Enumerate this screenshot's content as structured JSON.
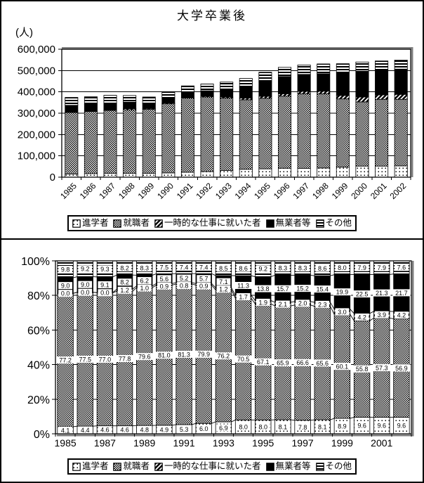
{
  "top_panel": {
    "title": "大学卒業後",
    "unit_label": "(人)"
  },
  "legend": {
    "items": [
      {
        "label": "進学者",
        "pattern": "dots"
      },
      {
        "label": "就職者",
        "pattern": "checker"
      },
      {
        "label": "一時的な仕事に就いた者",
        "pattern": "diagonal"
      },
      {
        "label": "無業者等",
        "pattern": "solid"
      },
      {
        "label": "その他",
        "pattern": "hlines"
      }
    ]
  },
  "chart_data": [
    {
      "type": "bar",
      "stacked": true,
      "title": "大学卒業後",
      "unit": "人",
      "ylim": [
        0,
        600000
      ],
      "y_ticks": [
        "600,000",
        "500,000",
        "400,000",
        "300,000",
        "200,000",
        "100,000",
        "0"
      ],
      "grid": true,
      "categories": [
        1985,
        1986,
        1987,
        1988,
        1989,
        1990,
        1991,
        1992,
        1993,
        1994,
        1995,
        1996,
        1997,
        1998,
        1999,
        2000,
        2001,
        2002
      ],
      "totals_estimated": [
        373000,
        376000,
        383000,
        383000,
        377000,
        400000,
        428000,
        438000,
        446000,
        462000,
        493000,
        513000,
        525000,
        530000,
        532000,
        539000,
        546000,
        548000
      ],
      "series": [
        {
          "name": "進学者",
          "pattern": "dots",
          "values": [
            15000,
            17000,
            18000,
            18000,
            18000,
            20000,
            23000,
            26000,
            31000,
            37000,
            39000,
            42000,
            41000,
            43000,
            47000,
            52000,
            52000,
            53000
          ]
        },
        {
          "name": "就職者",
          "pattern": "checker",
          "values": [
            288000,
            291000,
            295000,
            298000,
            300000,
            324000,
            348000,
            350000,
            340000,
            326000,
            331000,
            338000,
            350000,
            348000,
            320000,
            301000,
            313000,
            312000
          ]
        },
        {
          "name": "一時的な仕事に就いた者",
          "pattern": "diagonal",
          "values": [
            0,
            0,
            0,
            5000,
            4000,
            4000,
            3000,
            4000,
            5000,
            8000,
            9000,
            11000,
            11000,
            12000,
            16000,
            23000,
            21000,
            23000
          ]
        },
        {
          "name": "無業者等",
          "pattern": "solid",
          "values": [
            34000,
            34000,
            35000,
            31000,
            23000,
            22000,
            22000,
            25000,
            32000,
            52000,
            68000,
            81000,
            80000,
            82000,
            106000,
            121000,
            116000,
            119000
          ]
        },
        {
          "name": "その他",
          "pattern": "hlines",
          "values": [
            37000,
            35000,
            36000,
            31000,
            31000,
            30000,
            32000,
            32000,
            38000,
            40000,
            45000,
            43000,
            44000,
            46000,
            43000,
            43000,
            43000,
            42000
          ]
        }
      ],
      "legend_position": "bottom"
    },
    {
      "type": "bar",
      "stacked": "percent",
      "unit": "%",
      "ylim": [
        0,
        100
      ],
      "y_ticks": [
        "100%",
        "80%",
        "60%",
        "40%",
        "20%",
        "0%"
      ],
      "grid": true,
      "data_labels": true,
      "series_lines": true,
      "categories": [
        1985,
        1986,
        1987,
        1988,
        1989,
        1990,
        1991,
        1992,
        1993,
        1994,
        1995,
        1996,
        1997,
        1998,
        1999,
        2000,
        2001,
        2002
      ],
      "x_tick_labels": [
        "1985",
        "1987",
        "1989",
        "1991",
        "1993",
        "1995",
        "1997",
        "1999",
        "2001"
      ],
      "series": [
        {
          "name": "進学者",
          "pattern": "dots",
          "values": [
            4.1,
            4.4,
            4.6,
            4.6,
            4.8,
            4.9,
            5.3,
            6.0,
            6.9,
            8.0,
            8.0,
            8.1,
            7.8,
            8.1,
            8.9,
            9.6,
            9.6,
            9.6
          ]
        },
        {
          "name": "就職者",
          "pattern": "checker",
          "values": [
            77.2,
            77.5,
            77.0,
            77.8,
            79.6,
            81.0,
            81.3,
            79.9,
            76.2,
            70.5,
            67.1,
            65.9,
            66.6,
            65.6,
            60.1,
            55.8,
            57.3,
            56.9
          ]
        },
        {
          "name": "一時的な仕事に就いた者",
          "pattern": "diagonal",
          "values": [
            0.0,
            0.0,
            0.0,
            1.2,
            1.0,
            0.9,
            0.8,
            0.9,
            1.2,
            1.7,
            1.9,
            2.1,
            2.0,
            2.3,
            3.0,
            4.2,
            3.9,
            4.2
          ]
        },
        {
          "name": "無業者等",
          "pattern": "solid",
          "values": [
            9.0,
            9.0,
            9.1,
            8.2,
            6.2,
            5.6,
            5.2,
            5.7,
            7.1,
            11.3,
            13.8,
            15.7,
            15.2,
            15.4,
            19.9,
            22.5,
            21.3,
            21.7
          ]
        },
        {
          "name": "その他",
          "pattern": "hlines",
          "values": [
            9.8,
            9.2,
            9.3,
            8.2,
            8.3,
            7.5,
            7.4,
            7.4,
            8.5,
            8.6,
            9.2,
            8.3,
            8.3,
            8.6,
            8.0,
            7.9,
            7.9,
            7.6
          ]
        }
      ],
      "legend_position": "bottom"
    }
  ]
}
